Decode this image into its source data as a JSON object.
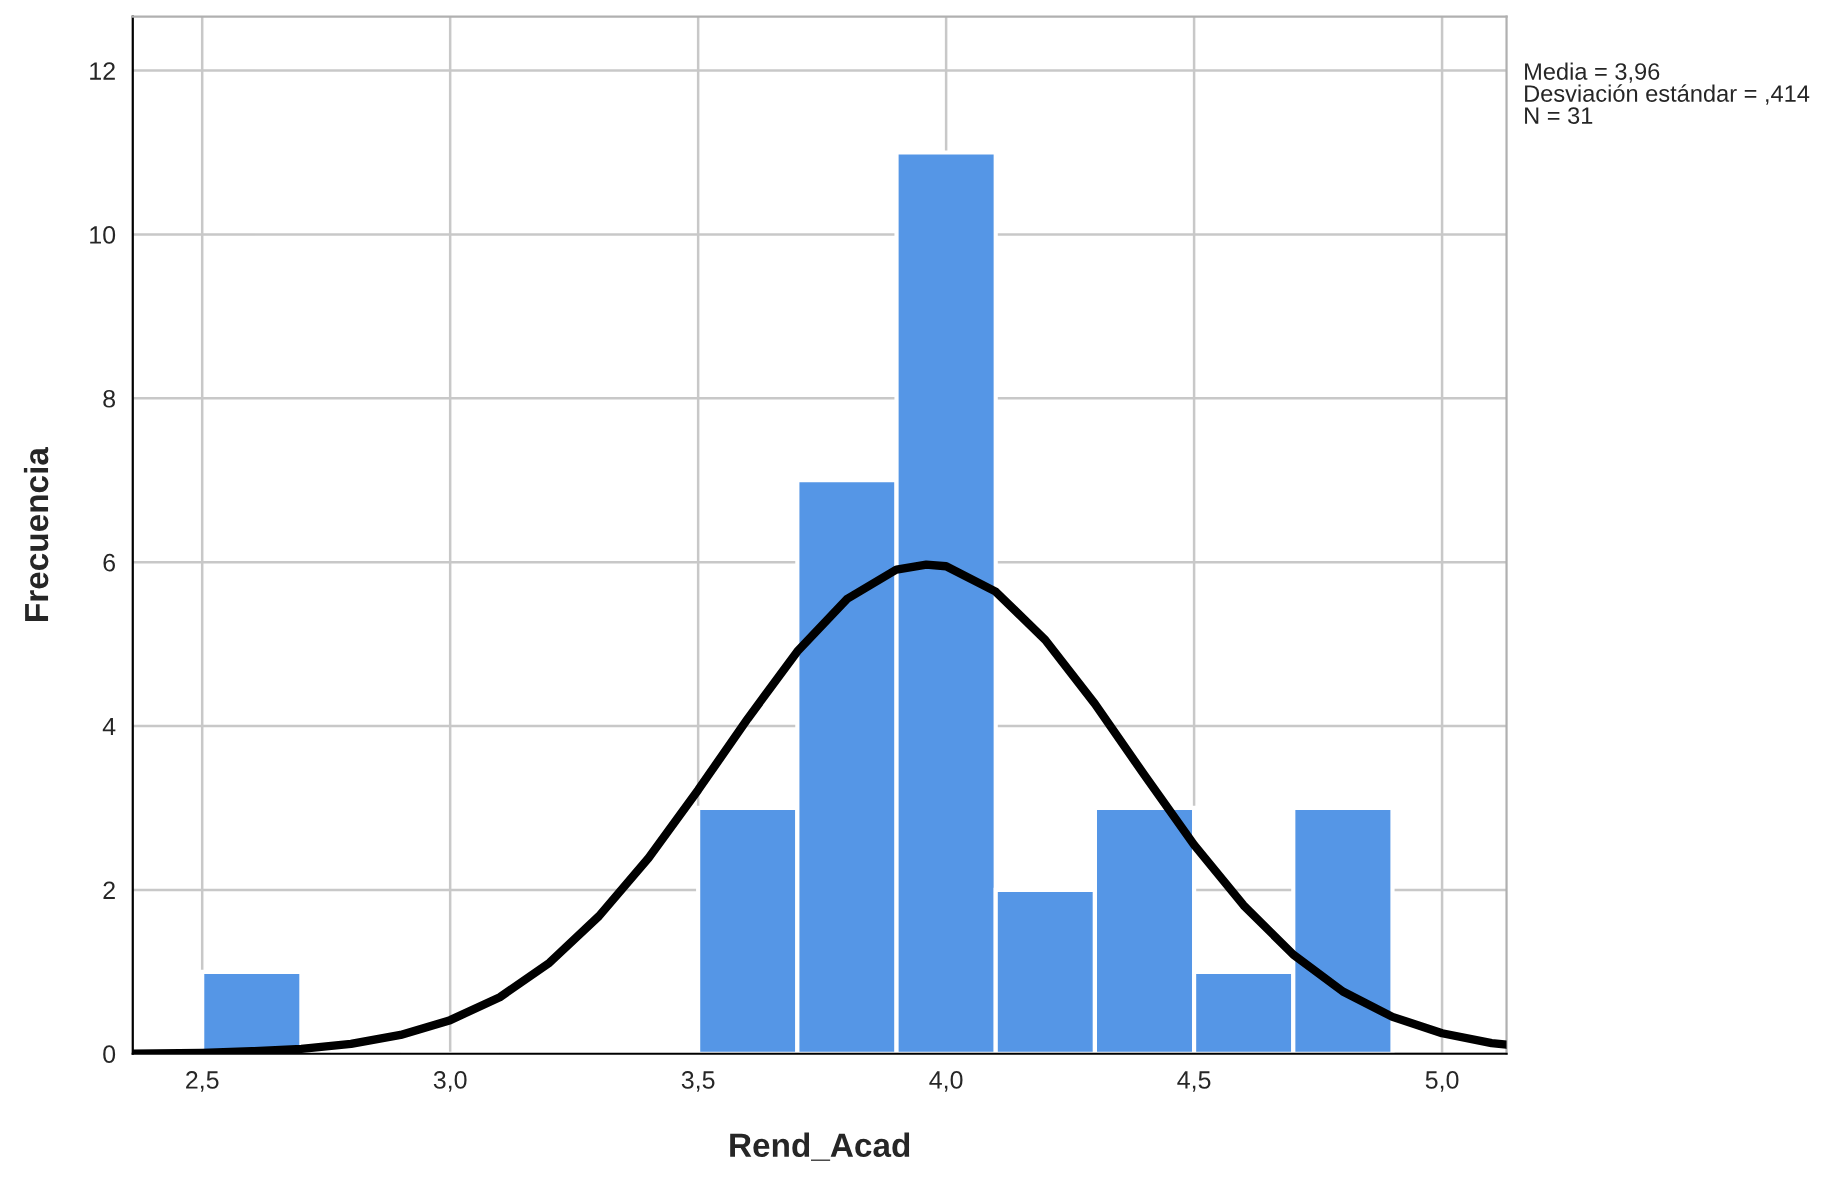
{
  "chart_data": {
    "type": "histogram",
    "xlabel": "Rend_Acad",
    "ylabel": "Frecuencia",
    "bins": [
      2.5,
      2.7,
      2.9,
      3.1,
      3.3,
      3.5,
      3.7,
      3.9,
      4.1,
      4.3,
      4.5,
      4.7,
      4.9
    ],
    "series": [
      {
        "color": "#5596e6",
        "values": [
          1,
          0,
          0,
          0,
          0,
          3,
          7,
          11,
          2,
          3,
          1,
          3
        ]
      },
      {
        "type": "line",
        "color": "#000000",
        "x": [
          2.36,
          2.5,
          2.6,
          2.7,
          2.8,
          2.9,
          3.0,
          3.1,
          3.2,
          3.3,
          3.4,
          3.5,
          3.6,
          3.7,
          3.8,
          3.9,
          3.96,
          4.0,
          4.1,
          4.2,
          4.3,
          4.4,
          4.5,
          4.6,
          4.7,
          4.8,
          4.9,
          5.0,
          5.1,
          5.13
        ],
        "values": [
          0.0,
          0.01,
          0.03,
          0.06,
          0.12,
          0.23,
          0.41,
          0.69,
          1.11,
          1.68,
          2.39,
          3.22,
          4.09,
          4.91,
          5.55,
          5.91,
          5.97,
          5.95,
          5.64,
          5.05,
          4.27,
          3.4,
          2.55,
          1.81,
          1.21,
          0.76,
          0.45,
          0.25,
          0.13,
          0.11
        ]
      }
    ],
    "xlim": [
      2.36,
      5.13
    ],
    "ylim": [
      0,
      12.66
    ],
    "xticks": [
      {
        "value": 2.5,
        "label": "2,5"
      },
      {
        "value": 3.0,
        "label": "3,0"
      },
      {
        "value": 3.5,
        "label": "3,5"
      },
      {
        "value": 4.0,
        "label": "4,0"
      },
      {
        "value": 4.5,
        "label": "4,5"
      },
      {
        "value": 5.0,
        "label": "5,0"
      }
    ],
    "yticks": [
      0,
      2,
      4,
      6,
      8,
      10,
      12
    ],
    "grid": true,
    "annotations": [
      "Media = 3,96\nDesviación estándar = ,414\nN = 31"
    ]
  }
}
